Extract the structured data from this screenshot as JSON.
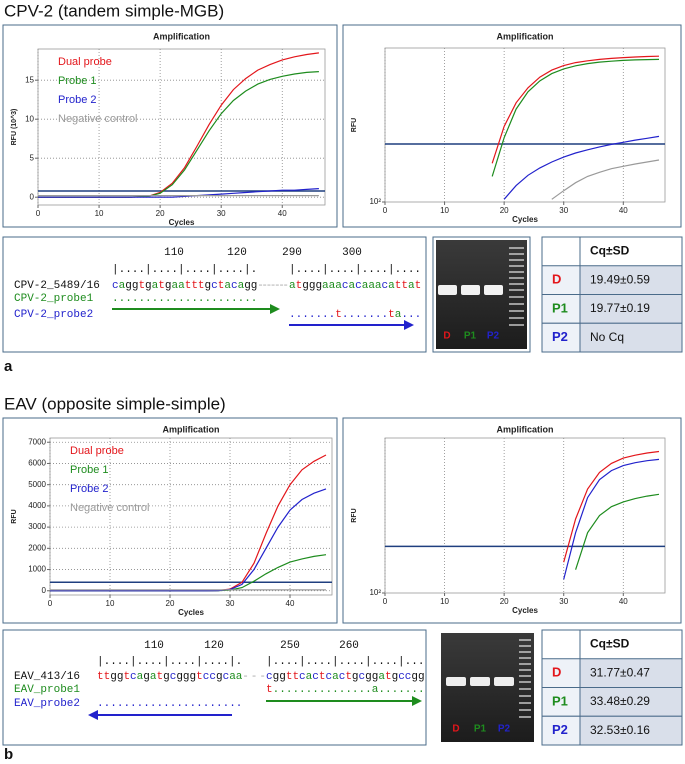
{
  "panels": [
    {
      "heading": "CPV-2 (tandem simple-MGB)",
      "letter": "a"
    },
    {
      "heading": "EAV (opposite simple-simple)",
      "letter": "b"
    }
  ],
  "chart_data": [
    {
      "type": "line",
      "title": "Amplification",
      "xlabel": "Cycles",
      "ylabel": "RFU (10^3)",
      "x": [
        0,
        5,
        10,
        15,
        18,
        20,
        22,
        24,
        26,
        28,
        30,
        32,
        34,
        36,
        38,
        40,
        42,
        44,
        46
      ],
      "xlim": [
        0,
        47
      ],
      "xticks": [
        0,
        10,
        20,
        30,
        40
      ],
      "ylim": [
        -1,
        19
      ],
      "yticks": [
        0,
        5,
        10,
        15
      ],
      "log": false,
      "grid": "both",
      "legend": "upper left",
      "threshold": 0.8,
      "threshold_color": "#1f3f7f",
      "series": [
        {
          "name": "Dual probe",
          "color": "#e3161b",
          "values": [
            0,
            0,
            0,
            0,
            0.1,
            0.6,
            1.8,
            3.8,
            6.5,
            9.3,
            11.8,
            13.8,
            15.2,
            16.3,
            17.0,
            17.6,
            18.0,
            18.3,
            18.5
          ]
        },
        {
          "name": "Probe 1",
          "color": "#1e8c1e",
          "values": [
            0,
            0,
            0,
            0,
            0.1,
            0.5,
            1.6,
            3.5,
            6.0,
            8.5,
            10.7,
            12.4,
            13.6,
            14.5,
            15.1,
            15.5,
            15.8,
            16.0,
            16.1
          ]
        },
        {
          "name": "Probe 2",
          "color": "#2222cc",
          "values": [
            0,
            0,
            0,
            0,
            0,
            0,
            0,
            0.1,
            0.2,
            0.3,
            0.4,
            0.5,
            0.6,
            0.7,
            0.8,
            0.9,
            0.9,
            1.0,
            1.1
          ]
        },
        {
          "name": "Negative control",
          "color": "#9a9a9a",
          "values": [
            0.2,
            0.2,
            0.2,
            0.2,
            0.2,
            0.2,
            0.2,
            0.2,
            0.2,
            0.2,
            0.2,
            0.2,
            0.2,
            0.2,
            0.2,
            0.2,
            0.2,
            0.2,
            0.2
          ]
        }
      ]
    },
    {
      "type": "line",
      "title": "Amplification",
      "xlabel": "Cycles",
      "ylabel": "RFU",
      "x": [
        0,
        5,
        10,
        15,
        18,
        20,
        22,
        24,
        26,
        28,
        30,
        32,
        34,
        36,
        38,
        40,
        42,
        44,
        46
      ],
      "xlim": [
        0,
        47
      ],
      "xticks": [
        0,
        10,
        20,
        30,
        40
      ],
      "ylim": [
        100,
        25000
      ],
      "yticks": [
        {
          "value": 100,
          "label": "10²"
        }
      ],
      "log": true,
      "grid": "x",
      "threshold": 800,
      "threshold_color": "#1f3f7f",
      "series": [
        {
          "color": "#e3161b",
          "values": [
            null,
            null,
            null,
            null,
            400,
            1500,
            3500,
            6000,
            8800,
            11300,
            13300,
            14800,
            15800,
            16600,
            17200,
            17700,
            18100,
            18400,
            18600
          ]
        },
        {
          "color": "#1e8c1e",
          "values": [
            null,
            null,
            null,
            null,
            250,
            1000,
            2800,
            5200,
            7700,
            10000,
            11800,
            13200,
            14300,
            15100,
            15600,
            16000,
            16300,
            16500,
            16600
          ]
        },
        {
          "color": "#2222cc",
          "values": [
            null,
            null,
            null,
            null,
            null,
            110,
            180,
            260,
            340,
            420,
            500,
            580,
            650,
            720,
            790,
            850,
            920,
            980,
            1050
          ]
        },
        {
          "color": "#9a9a9a",
          "values": [
            null,
            null,
            null,
            null,
            null,
            null,
            null,
            null,
            null,
            110,
            150,
            200,
            250,
            290,
            330,
            360,
            390,
            420,
            450
          ]
        }
      ]
    },
    {
      "type": "line",
      "title": "Amplification",
      "xlabel": "Cycles",
      "ylabel": "RFU",
      "x": [
        0,
        5,
        10,
        15,
        18,
        20,
        22,
        24,
        26,
        28,
        30,
        32,
        34,
        36,
        38,
        40,
        42,
        44,
        46
      ],
      "xlim": [
        0,
        47
      ],
      "xticks": [
        0,
        10,
        20,
        30,
        40
      ],
      "ylim": [
        -200,
        7200
      ],
      "yticks": [
        0,
        1000,
        2000,
        3000,
        4000,
        5000,
        6000,
        7000
      ],
      "log": false,
      "grid": "both",
      "legend": "upper left",
      "threshold": 400,
      "threshold_color": "#1f3f7f",
      "series": [
        {
          "name": "Dual probe",
          "color": "#e3161b",
          "values": [
            0,
            0,
            0,
            0,
            0,
            0,
            0,
            0,
            0,
            10,
            80,
            400,
            1300,
            2700,
            4000,
            5000,
            5700,
            6100,
            6400
          ]
        },
        {
          "name": "Probe 1",
          "color": "#1e8c1e",
          "values": [
            0,
            0,
            0,
            0,
            0,
            0,
            0,
            0,
            0,
            5,
            30,
            150,
            450,
            800,
            1100,
            1350,
            1500,
            1620,
            1700
          ]
        },
        {
          "name": "Probe 2",
          "color": "#2222cc",
          "values": [
            0,
            0,
            0,
            0,
            0,
            0,
            0,
            0,
            0,
            8,
            60,
            300,
            1000,
            2000,
            3000,
            3800,
            4300,
            4600,
            4800
          ]
        },
        {
          "name": "Negative control",
          "color": "#9a9a9a",
          "values": [
            40,
            40,
            40,
            40,
            40,
            40,
            40,
            40,
            40,
            40,
            40,
            40,
            40,
            40,
            40,
            40,
            40,
            40,
            40
          ]
        }
      ]
    },
    {
      "type": "line",
      "title": "Amplification",
      "xlabel": "Cycles",
      "ylabel": "RFU",
      "x": [
        0,
        5,
        10,
        15,
        18,
        20,
        22,
        24,
        26,
        28,
        30,
        32,
        34,
        36,
        38,
        40,
        42,
        44,
        46
      ],
      "xlim": [
        0,
        47
      ],
      "xticks": [
        0,
        10,
        20,
        30,
        40
      ],
      "ylim": [
        100,
        10000
      ],
      "yticks": [
        {
          "value": 100,
          "label": "10²"
        }
      ],
      "log": true,
      "grid": "x",
      "threshold": 400,
      "threshold_color": "#1f3f7f",
      "series": [
        {
          "color": "#e3161b",
          "values": [
            null,
            null,
            null,
            null,
            null,
            null,
            null,
            null,
            null,
            null,
            250,
            900,
            2200,
            3600,
            4700,
            5500,
            6000,
            6400,
            6700
          ]
        },
        {
          "color": "#2222cc",
          "values": [
            null,
            null,
            null,
            null,
            null,
            null,
            null,
            null,
            null,
            null,
            150,
            600,
            1700,
            2900,
            3800,
            4400,
            4800,
            5100,
            5300
          ]
        },
        {
          "color": "#1e8c1e",
          "values": [
            null,
            null,
            null,
            null,
            null,
            null,
            null,
            null,
            null,
            null,
            null,
            200,
            600,
            1000,
            1300,
            1500,
            1650,
            1780,
            1880
          ]
        }
      ]
    }
  ],
  "alignments": [
    {
      "ruler_numbers": [
        "110",
        "120",
        "290",
        "300"
      ],
      "ruler_left": "|....|....|....|....|.",
      "ruler_right": "|....|....|....|....",
      "rows": [
        {
          "name": "CPV-2_5489/16",
          "color": "#111111",
          "left": "caggtgatgaatttgctacagg",
          "gap": "-------",
          "right": "atgggaaacacaaacattat"
        },
        {
          "name": "CPV-2_probe1",
          "color": "#1e8c1e",
          "left": "......................"
        },
        {
          "name": "CPV-2_probe2",
          "color": "#2222cc",
          "right": ".......t.......ta..."
        }
      ]
    },
    {
      "ruler_numbers": [
        "110",
        "120",
        "250",
        "260"
      ],
      "ruler_left": "|....|....|....|....|.",
      "ruler_right": "|....|....|....|....|...",
      "rows": [
        {
          "name": "EAV_413/16",
          "color": "#111111",
          "left": "ttggtcagatgcgggtccgcaa",
          "gap": "---",
          "right": "cggttcactcactgcggatgccgg"
        },
        {
          "name": "EAV_probe1",
          "color": "#1e8c1e",
          "right": "t...............a......."
        },
        {
          "name": "EAV_probe2",
          "color": "#2222cc",
          "left": "......................"
        }
      ]
    }
  ],
  "gels": [
    {
      "lanes": [
        "D",
        "P1",
        "P2"
      ],
      "lane_colors": [
        "#e3161b",
        "#1e8c1e",
        "#2222cc"
      ]
    },
    {
      "lanes": [
        "D",
        "P1",
        "P2"
      ],
      "lane_colors": [
        "#e3161b",
        "#1e8c1e",
        "#2222cc"
      ]
    }
  ],
  "tables": [
    {
      "header": "Cq±SD",
      "row_colors": [
        "#e3161b",
        "#1e8c1e",
        "#2222cc"
      ],
      "rows": [
        [
          "D",
          "19.49±0.59"
        ],
        [
          "P1",
          "19.77±0.19"
        ],
        [
          "P2",
          "No Cq"
        ]
      ]
    },
    {
      "header": "Cq±SD",
      "row_colors": [
        "#e3161b",
        "#1e8c1e",
        "#2222cc"
      ],
      "rows": [
        [
          "D",
          "31.77±0.47"
        ],
        [
          "P1",
          "33.48±0.29"
        ],
        [
          "P2",
          "32.53±0.16"
        ]
      ]
    }
  ]
}
